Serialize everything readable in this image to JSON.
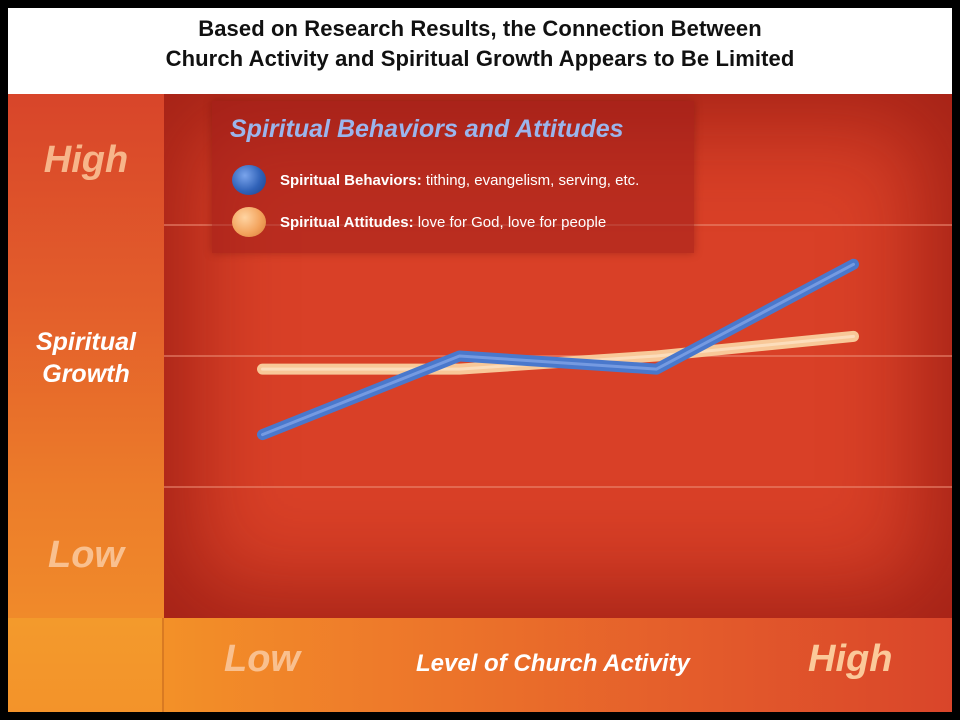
{
  "title": {
    "line1": "Based on Research Results, the Connection Between",
    "line2": "Church Activity and Spiritual Growth Appears to Be Limited"
  },
  "y_axis": {
    "high": "High",
    "label_line1": "Spiritual",
    "label_line2": "Growth",
    "low": "Low"
  },
  "x_axis": {
    "low": "Low",
    "label": "Level of Church Activity",
    "high": "High"
  },
  "legend": {
    "title": "Spiritual Behaviors and Attitudes",
    "items": [
      {
        "name": "Spiritual Behaviors:",
        "desc": " tithing, evangelism, serving, etc.",
        "color": "#3b6cc4"
      },
      {
        "name": "Spiritual Attitudes:",
        "desc": " love for God, love for people",
        "color": "#f5a25a"
      }
    ]
  },
  "colors": {
    "plot_bg": "#d94027",
    "gridline": "#ec8a72",
    "behaviors_line": "#4a78cc",
    "attitudes_line": "#f8c898"
  },
  "chart_data": {
    "type": "line",
    "title": "Based on Research Results, the Connection Between Church Activity and Spiritual Growth Appears to Be Limited",
    "xlabel": "Level of Church Activity",
    "ylabel": "Spiritual Growth",
    "x_tick_labels": [
      "Low",
      "High"
    ],
    "y_tick_labels": [
      "Low",
      "High"
    ],
    "x": [
      1,
      2,
      3,
      4
    ],
    "xlim": [
      0.5,
      4.5
    ],
    "ylim": [
      0,
      4
    ],
    "grid": true,
    "legend_position": "top-left",
    "series": [
      {
        "name": "Spiritual Behaviors",
        "values": [
          1.4,
          2.0,
          1.9,
          2.7
        ]
      },
      {
        "name": "Spiritual Attitudes",
        "values": [
          1.9,
          1.9,
          2.0,
          2.15
        ]
      }
    ]
  }
}
